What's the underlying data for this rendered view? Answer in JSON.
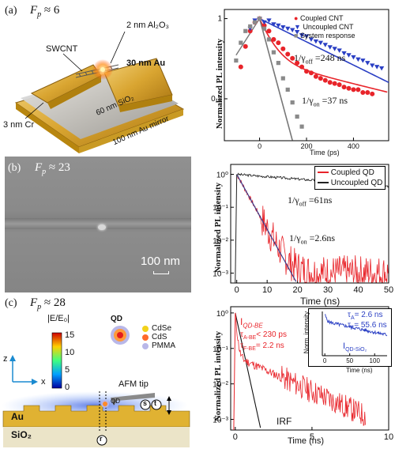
{
  "panel_a": {
    "label": "(a)",
    "fp_symbol": "F",
    "fp_sub": "p",
    "fp_rest": " ≈ 6",
    "diagram_labels": {
      "al2o3": "2 nm Al₂O₃",
      "swcnt": "SWCNT",
      "au30": "30 nm Au",
      "sio2": "60 nm SiO₂",
      "cr": "3 nm Cr",
      "mirror": "100 nm Au mirror"
    }
  },
  "panel_b": {
    "label": "(b)",
    "fp_symbol": "F",
    "fp_sub": "p",
    "fp_rest": " ≈ 23",
    "scalebar": "100 nm"
  },
  "panel_c": {
    "label": "(c)",
    "fp_symbol": "F",
    "fp_sub": "p",
    "fp_rest": " ≈ 28",
    "colorbar_title": "|E/E₀|",
    "colorbar_ticks": [
      "15",
      "10",
      "5",
      "0"
    ],
    "axis_z": "z",
    "axis_x": "x",
    "legend_title": "QD",
    "legend_items": [
      "CdSe",
      "CdS",
      "PMMA"
    ],
    "afm_label": "AFM tip",
    "qd_label": "QD",
    "au_label": "Au",
    "sio2_label": "SiO₂",
    "s_label": "s",
    "t_label": "t",
    "r_label": "r"
  },
  "colors": {
    "red": "#e8242a",
    "blue": "#2a3fc4",
    "gray": "#8a8a8a",
    "gold": "#d9a531",
    "dark": "#222222"
  },
  "chart_data": [
    {
      "type": "scatter",
      "ylabel": "Normalized PL intensity",
      "xlabel": "Time (ps)",
      "ylog": true,
      "ylim": [
        0.03,
        1.3
      ],
      "xlim": [
        -150,
        550
      ],
      "xticks": [
        "0",
        "200",
        "400"
      ],
      "yticks": [
        "1",
        "0.1"
      ],
      "legend": [
        "Coupled CNT",
        "Uncoupled CNT",
        "System response"
      ],
      "annotations": [
        "1/γ",
        "off",
        " =248 ns",
        "1/γ",
        "on",
        " =37 ns"
      ],
      "series": [
        {
          "name": "Coupled CNT",
          "color": "#e8242a",
          "marker": "circle",
          "x": [
            -80,
            -60,
            -40,
            -20,
            0,
            20,
            40,
            60,
            80,
            100,
            120,
            140,
            160,
            180,
            200,
            220,
            240,
            260,
            280,
            300,
            320,
            340,
            360,
            380,
            400,
            420,
            440,
            460,
            480
          ],
          "y": [
            0.25,
            0.45,
            0.7,
            0.9,
            1.0,
            0.82,
            0.7,
            0.55,
            0.5,
            0.42,
            0.36,
            0.32,
            0.28,
            0.25,
            0.22,
            0.21,
            0.19,
            0.18,
            0.17,
            0.16,
            0.155,
            0.15,
            0.14,
            0.135,
            0.13,
            0.13,
            0.12,
            0.12,
            0.115
          ]
        },
        {
          "name": "Uncoupled CNT",
          "color": "#2a3fc4",
          "marker": "triangle",
          "x": [
            -40,
            -20,
            0,
            20,
            40,
            60,
            80,
            100,
            120,
            140,
            160,
            180,
            200,
            220,
            240,
            260,
            280,
            300,
            320,
            340,
            360,
            380,
            400,
            420,
            440,
            460,
            480,
            500,
            520
          ],
          "y": [
            0.75,
            0.95,
            1.0,
            0.9,
            0.95,
            0.85,
            0.82,
            0.78,
            0.75,
            0.72,
            0.68,
            0.62,
            0.6,
            0.55,
            0.52,
            0.5,
            0.47,
            0.44,
            0.42,
            0.4,
            0.37,
            0.35,
            0.33,
            0.31,
            0.3,
            0.28,
            0.26,
            0.25,
            0.24
          ]
        },
        {
          "name": "System response",
          "color": "#8a8a8a",
          "marker": "square",
          "x": [
            -100,
            -80,
            -60,
            -40,
            -20,
            0,
            20,
            40,
            60,
            80,
            100,
            120,
            140,
            160,
            180
          ],
          "y": [
            0.3,
            0.5,
            0.7,
            0.8,
            0.9,
            1.0,
            0.75,
            0.55,
            0.38,
            0.28,
            0.18,
            0.13,
            0.09,
            0.06,
            0.045
          ]
        }
      ]
    },
    {
      "type": "line",
      "ylabel": "Normalized PL intensity",
      "xlabel": "Time (ns)",
      "ylog": true,
      "xlim": [
        -2,
        50
      ],
      "ylim": [
        0.0005,
        2
      ],
      "xticks": [
        "0",
        "10",
        "20",
        "30",
        "40",
        "50"
      ],
      "yticks": [
        "10⁰",
        "10⁻¹",
        "10⁻²",
        "10⁻³"
      ],
      "legend": [
        "Coupled QD",
        "Uncoupled QD"
      ],
      "annotations": [
        "1/γ",
        "off",
        " =61ns",
        "1/γ",
        "on",
        " =2.6ns"
      ],
      "series": [
        {
          "name": "Coupled QD",
          "color": "#e8242a",
          "lifetime_ns": 2.6
        },
        {
          "name": "Uncoupled QD",
          "color": "#222222",
          "lifetime_ns": 61
        }
      ]
    },
    {
      "type": "line",
      "ylabel": "Normalized PL intensity",
      "xlabel": "Time (ns)",
      "ylog": true,
      "xlim": [
        -0.3,
        10
      ],
      "ylim": [
        0.0005,
        1.5
      ],
      "xticks": [
        "0",
        "5",
        "10"
      ],
      "yticks": [
        "10⁰",
        "10⁻¹",
        "10⁻²",
        "10⁻³"
      ],
      "annotations": [
        "I",
        "QD-BE",
        "τ",
        "A-BE",
        "< 230 ps",
        "τ",
        "F-BE",
        "= 2.2 ns",
        "IRF"
      ],
      "inset": {
        "ylabel": "Norm. intensity",
        "xlabel": "Time (ns)",
        "xticks": [
          "0",
          "50",
          "100"
        ],
        "lines": [
          "τ",
          "A",
          "= 2.6 ns",
          "τ",
          "F",
          "= 55.6 ns",
          "I",
          "QD-SiO₂"
        ]
      },
      "series": [
        {
          "name": "I_QD-BE",
          "color": "#e8242a"
        },
        {
          "name": "IRF",
          "color": "#111111"
        },
        {
          "name": "I_QD-SiO2",
          "color": "#2a3fc4"
        }
      ]
    }
  ]
}
